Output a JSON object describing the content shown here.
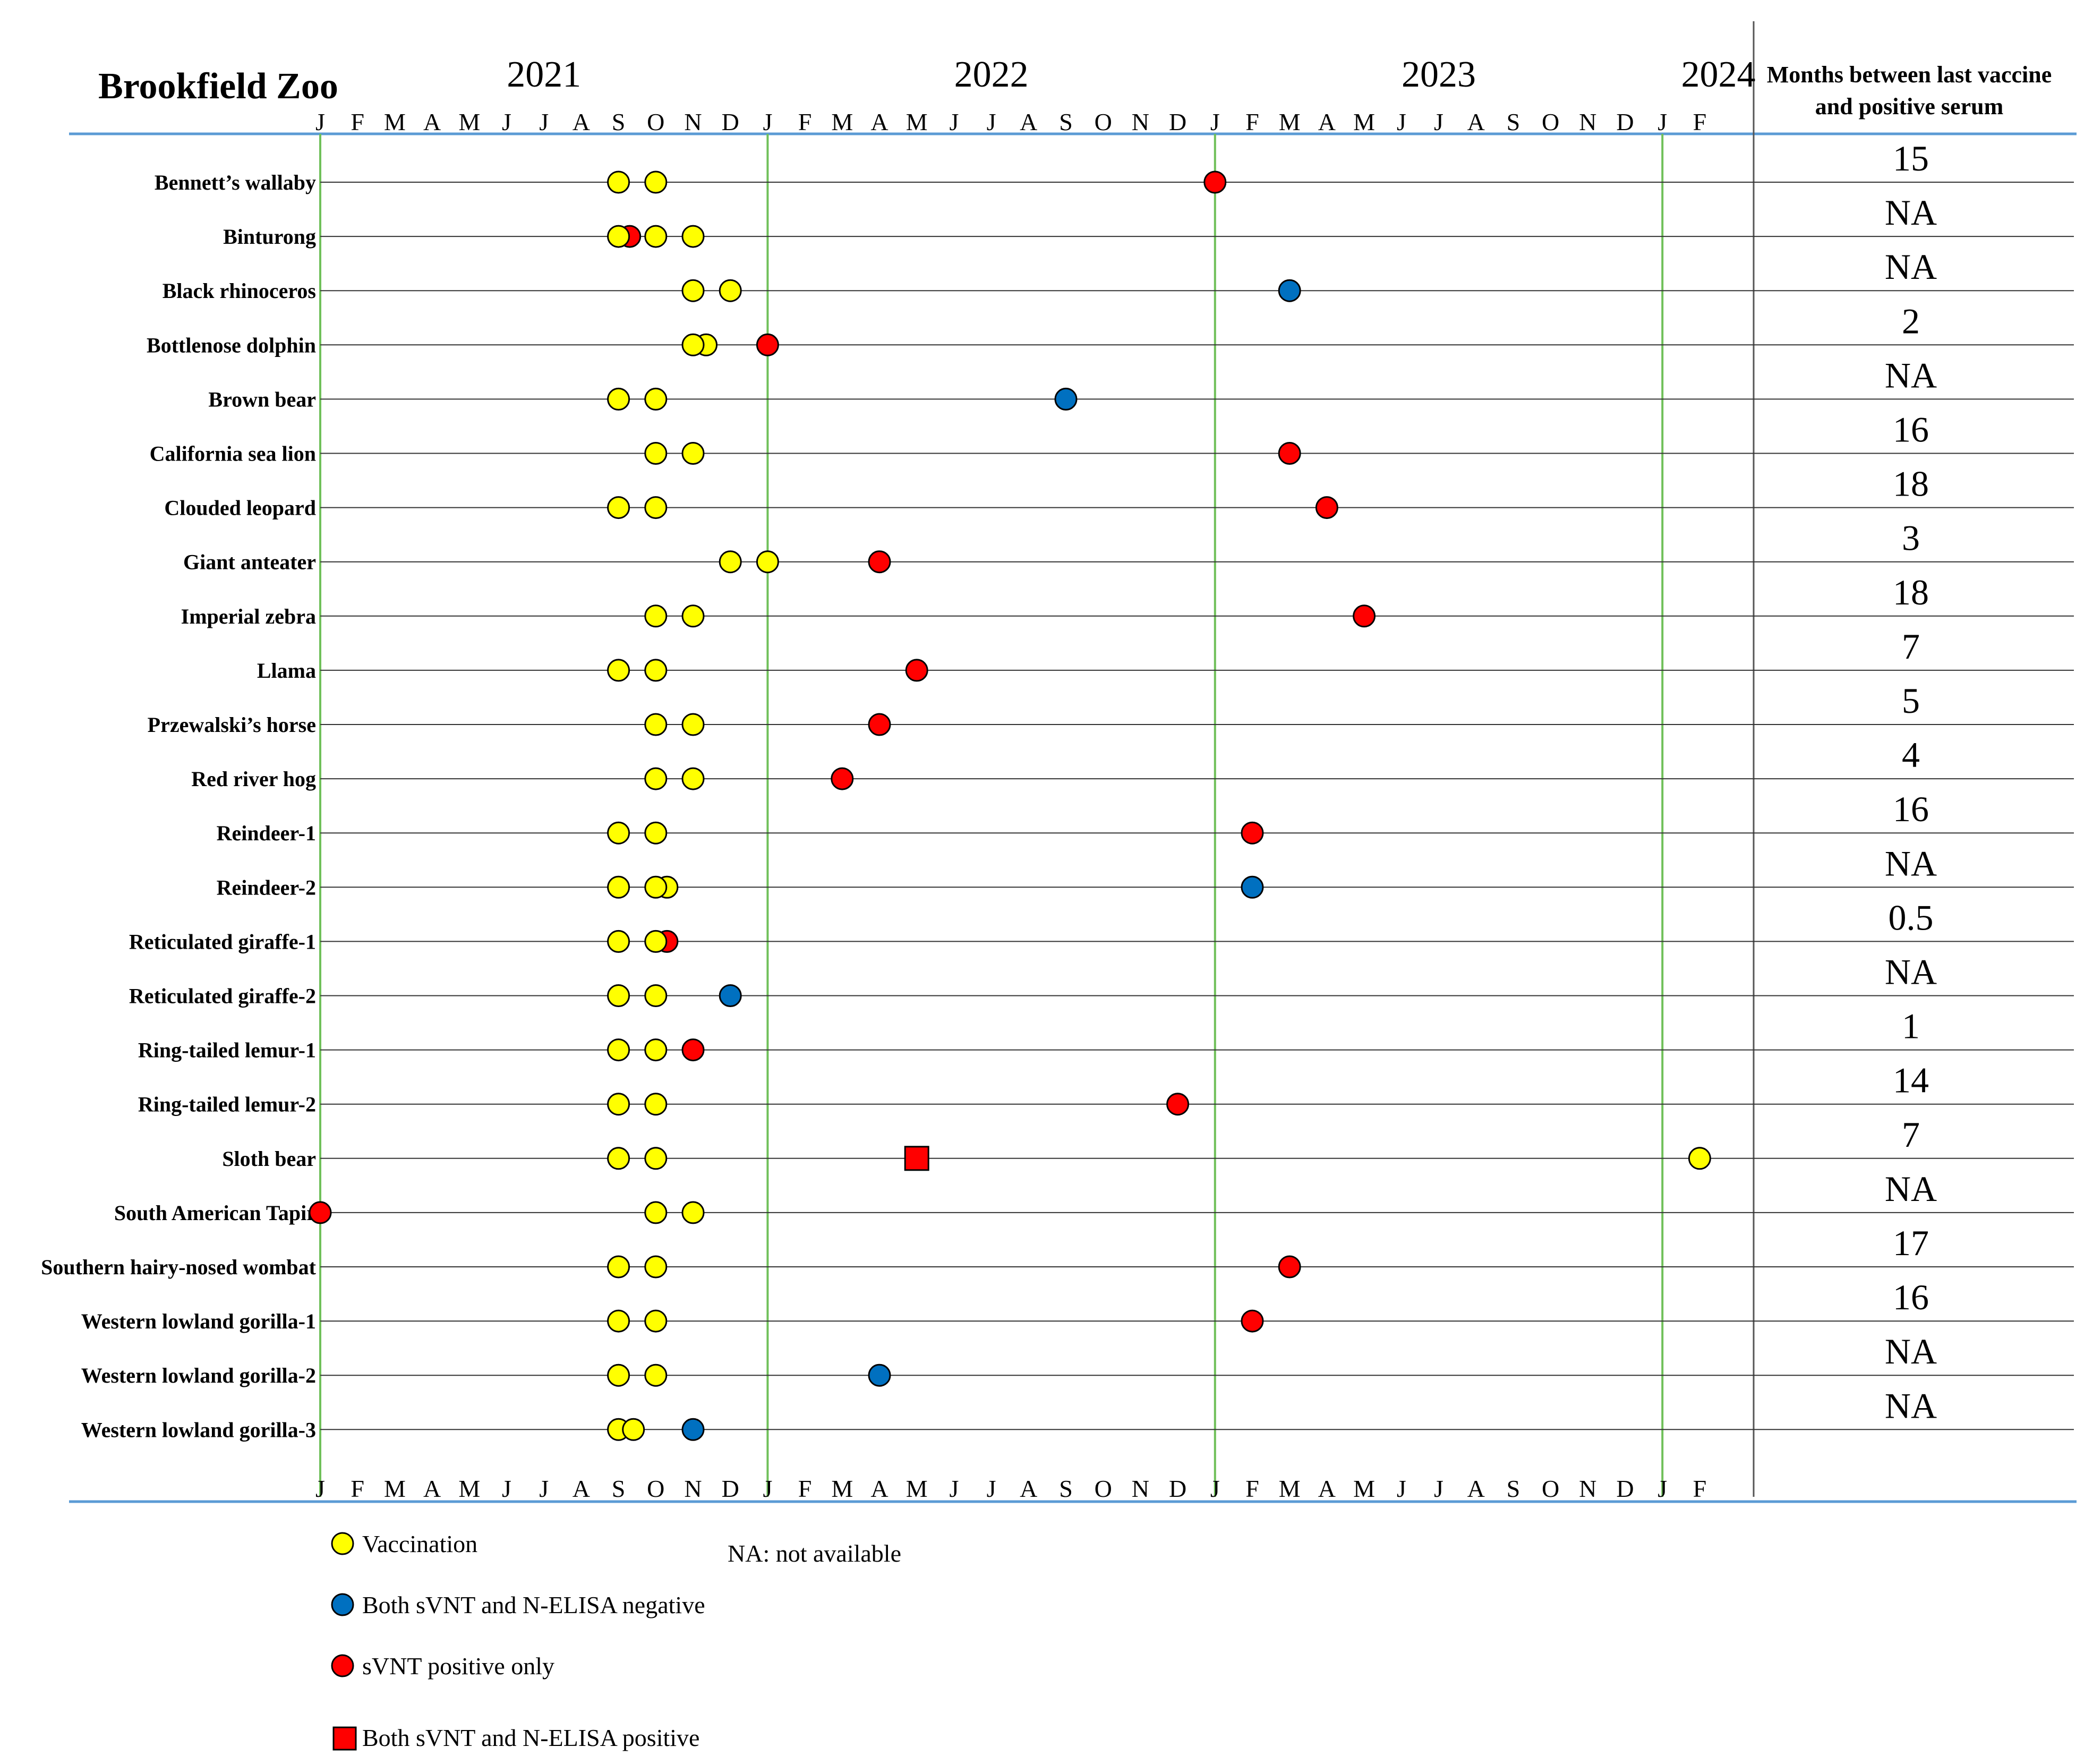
{
  "chart_data": {
    "type": "scatter",
    "title": "Brookfield Zoo",
    "years": [
      {
        "label": "2021",
        "month_index": 6
      },
      {
        "label": "2022",
        "month_index": 18
      },
      {
        "label": "2023",
        "month_index": 30
      },
      {
        "label": "2024",
        "month_index": 37.5
      }
    ],
    "month_labels": [
      "J",
      "F",
      "M",
      "A",
      "M",
      "J",
      "J",
      "A",
      "S",
      "O",
      "N",
      "D",
      "J",
      "F",
      "M",
      "A",
      "M",
      "J",
      "J",
      "A",
      "S",
      "O",
      "N",
      "D",
      "J",
      "F",
      "M",
      "A",
      "M",
      "J",
      "J",
      "A",
      "S",
      "O",
      "N",
      "D",
      "J",
      "F"
    ],
    "year_boundaries": [
      0,
      12,
      24,
      36
    ],
    "x_axis_start": "January 2021",
    "months_column_header": [
      "Months between last vaccine",
      "and positive serum"
    ],
    "legend": [
      {
        "key": "vaccination",
        "label": "Vaccination",
        "color": "#ffff00",
        "shape": "circle"
      },
      {
        "key": "both_negative",
        "label": "Both sVNT and N-ELISA negative",
        "color": "#0070c0",
        "shape": "circle"
      },
      {
        "key": "svnt_positive",
        "label": "sVNT positive only",
        "color": "#ff0000",
        "shape": "circle"
      },
      {
        "key": "both_positive",
        "label": "Both sVNT and N-ELISA positive",
        "color": "#ff0000",
        "shape": "square"
      }
    ],
    "na_note": "NA: not available",
    "rows": [
      {
        "name": "Bennett’s wallaby",
        "months": "15",
        "events": [
          {
            "m": 8,
            "t": "vaccination"
          },
          {
            "m": 9,
            "t": "vaccination"
          },
          {
            "m": 24,
            "t": "svnt_positive"
          }
        ]
      },
      {
        "name": "Binturong",
        "months": "NA",
        "events": [
          {
            "m": 8.3,
            "t": "svnt_positive"
          },
          {
            "m": 8,
            "t": "vaccination"
          },
          {
            "m": 9,
            "t": "vaccination"
          },
          {
            "m": 10,
            "t": "vaccination"
          }
        ]
      },
      {
        "name": "Black rhinoceros",
        "months": "NA",
        "events": [
          {
            "m": 10,
            "t": "vaccination"
          },
          {
            "m": 11,
            "t": "vaccination"
          },
          {
            "m": 26,
            "t": "both_negative"
          }
        ]
      },
      {
        "name": "Bottlenose dolphin",
        "months": "2",
        "events": [
          {
            "m": 10.35,
            "t": "vaccination"
          },
          {
            "m": 10,
            "t": "vaccination"
          },
          {
            "m": 12,
            "t": "svnt_positive"
          }
        ]
      },
      {
        "name": "Brown bear",
        "months": "NA",
        "events": [
          {
            "m": 8,
            "t": "vaccination"
          },
          {
            "m": 9,
            "t": "vaccination"
          },
          {
            "m": 20,
            "t": "both_negative"
          }
        ]
      },
      {
        "name": "California sea lion",
        "months": "16",
        "events": [
          {
            "m": 9,
            "t": "vaccination"
          },
          {
            "m": 10,
            "t": "vaccination"
          },
          {
            "m": 26,
            "t": "svnt_positive"
          }
        ]
      },
      {
        "name": "Clouded leopard",
        "months": "18",
        "events": [
          {
            "m": 8,
            "t": "vaccination"
          },
          {
            "m": 9,
            "t": "vaccination"
          },
          {
            "m": 27,
            "t": "svnt_positive"
          }
        ]
      },
      {
        "name": "Giant anteater",
        "months": "3",
        "events": [
          {
            "m": 11,
            "t": "vaccination"
          },
          {
            "m": 12,
            "t": "vaccination"
          },
          {
            "m": 15,
            "t": "svnt_positive"
          }
        ]
      },
      {
        "name": "Imperial zebra",
        "months": "18",
        "events": [
          {
            "m": 9,
            "t": "vaccination"
          },
          {
            "m": 10,
            "t": "vaccination"
          },
          {
            "m": 28,
            "t": "svnt_positive"
          }
        ]
      },
      {
        "name": "Llama",
        "months": "7",
        "events": [
          {
            "m": 8,
            "t": "vaccination"
          },
          {
            "m": 9,
            "t": "vaccination"
          },
          {
            "m": 16,
            "t": "svnt_positive"
          }
        ]
      },
      {
        "name": "Przewalski’s horse",
        "months": "5",
        "events": [
          {
            "m": 9,
            "t": "vaccination"
          },
          {
            "m": 10,
            "t": "vaccination"
          },
          {
            "m": 15,
            "t": "svnt_positive"
          }
        ]
      },
      {
        "name": "Red river hog",
        "months": "4",
        "events": [
          {
            "m": 9,
            "t": "vaccination"
          },
          {
            "m": 10,
            "t": "vaccination"
          },
          {
            "m": 14,
            "t": "svnt_positive"
          }
        ]
      },
      {
        "name": "Reindeer-1",
        "months": "16",
        "events": [
          {
            "m": 8,
            "t": "vaccination"
          },
          {
            "m": 9,
            "t": "vaccination"
          },
          {
            "m": 25,
            "t": "svnt_positive"
          }
        ]
      },
      {
        "name": "Reindeer-2",
        "months": "NA",
        "events": [
          {
            "m": 8,
            "t": "vaccination"
          },
          {
            "m": 9.3,
            "t": "vaccination"
          },
          {
            "m": 9,
            "t": "vaccination"
          },
          {
            "m": 25,
            "t": "both_negative"
          }
        ]
      },
      {
        "name": "Reticulated giraffe-1",
        "months": "0.5",
        "events": [
          {
            "m": 8,
            "t": "vaccination"
          },
          {
            "m": 9.3,
            "t": "svnt_positive"
          },
          {
            "m": 9,
            "t": "vaccination"
          }
        ]
      },
      {
        "name": "Reticulated giraffe-2",
        "months": "NA",
        "events": [
          {
            "m": 8,
            "t": "vaccination"
          },
          {
            "m": 9,
            "t": "vaccination"
          },
          {
            "m": 11,
            "t": "both_negative"
          }
        ]
      },
      {
        "name": "Ring-tailed lemur-1",
        "months": "1",
        "events": [
          {
            "m": 8,
            "t": "vaccination"
          },
          {
            "m": 9,
            "t": "vaccination"
          },
          {
            "m": 10,
            "t": "svnt_positive"
          }
        ]
      },
      {
        "name": "Ring-tailed lemur-2",
        "months": "14",
        "events": [
          {
            "m": 8,
            "t": "vaccination"
          },
          {
            "m": 9,
            "t": "vaccination"
          },
          {
            "m": 23,
            "t": "svnt_positive"
          }
        ]
      },
      {
        "name": "Sloth bear",
        "months": "7",
        "events": [
          {
            "m": 8,
            "t": "vaccination"
          },
          {
            "m": 9,
            "t": "vaccination"
          },
          {
            "m": 16,
            "t": "both_positive"
          },
          {
            "m": 37,
            "t": "vaccination"
          }
        ]
      },
      {
        "name": "South American Tapir",
        "months": "NA",
        "events": [
          {
            "m": 0,
            "t": "svnt_positive"
          },
          {
            "m": 9,
            "t": "vaccination"
          },
          {
            "m": 10,
            "t": "vaccination"
          }
        ]
      },
      {
        "name": "Southern hairy-nosed wombat",
        "months": "17",
        "events": [
          {
            "m": 8,
            "t": "vaccination"
          },
          {
            "m": 9,
            "t": "vaccination"
          },
          {
            "m": 26,
            "t": "svnt_positive"
          }
        ]
      },
      {
        "name": "Western lowland gorilla-1",
        "months": "16",
        "events": [
          {
            "m": 8,
            "t": "vaccination"
          },
          {
            "m": 9,
            "t": "vaccination"
          },
          {
            "m": 25,
            "t": "svnt_positive"
          }
        ]
      },
      {
        "name": "Western lowland gorilla-2",
        "months": "NA",
        "events": [
          {
            "m": 8,
            "t": "vaccination"
          },
          {
            "m": 9,
            "t": "vaccination"
          },
          {
            "m": 15,
            "t": "both_negative"
          }
        ]
      },
      {
        "name": "Western lowland gorilla-3",
        "months": "NA",
        "events": [
          {
            "m": 8,
            "t": "vaccination"
          },
          {
            "m": 8.4,
            "t": "vaccination"
          },
          {
            "m": 10,
            "t": "both_negative"
          }
        ]
      }
    ]
  }
}
